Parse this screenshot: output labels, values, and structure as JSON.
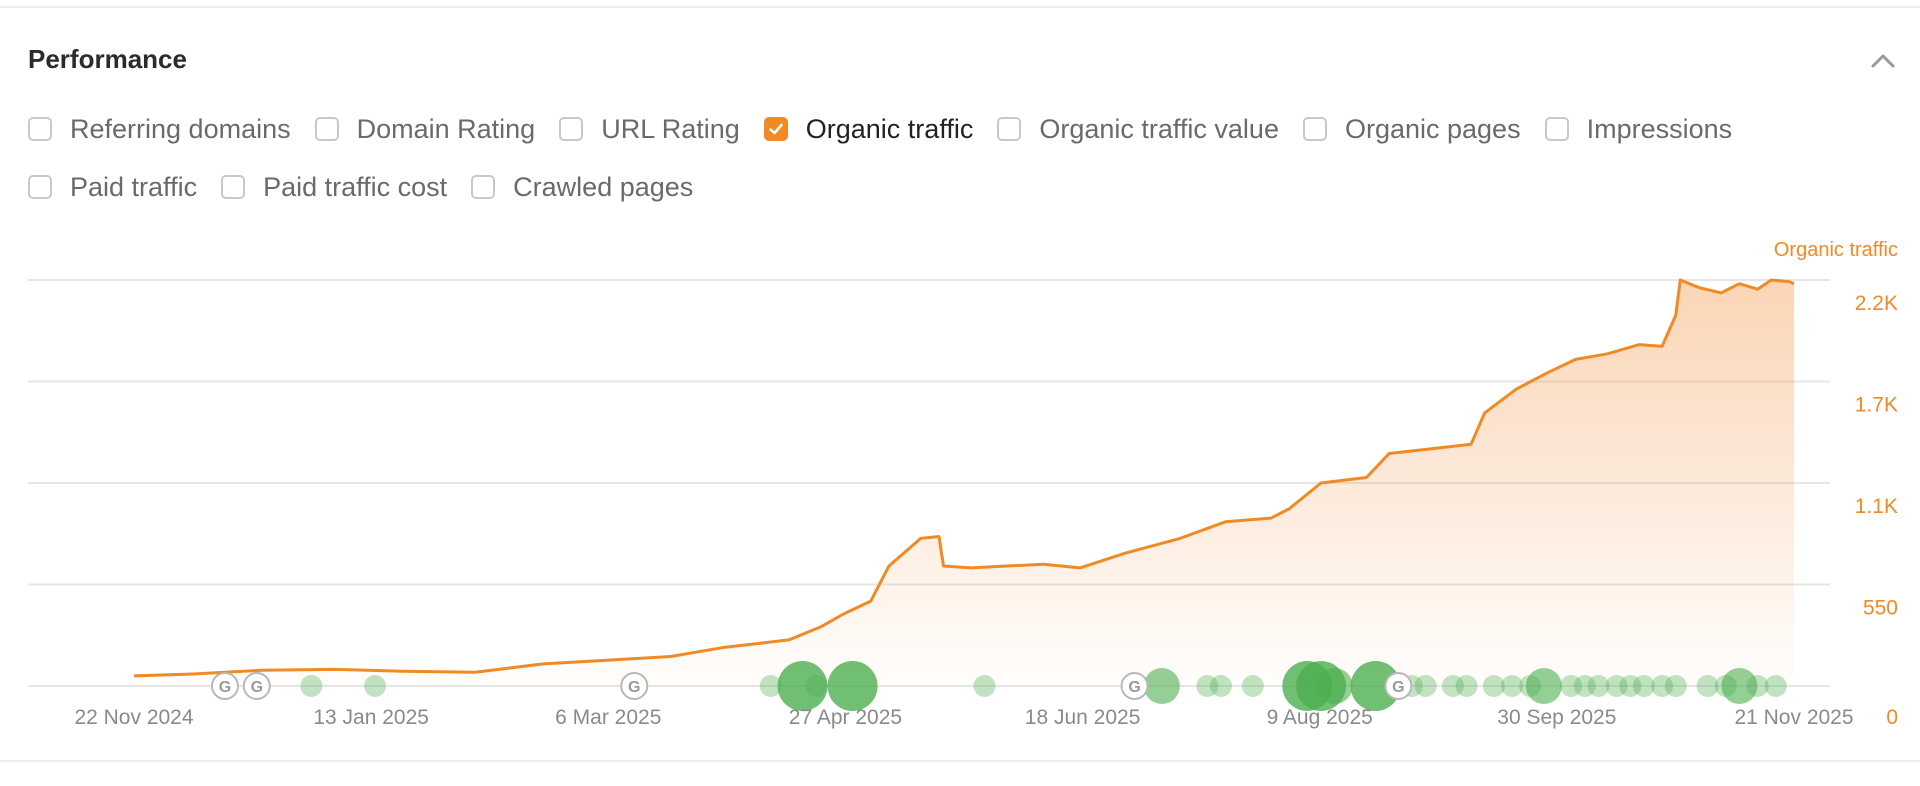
{
  "panel": {
    "title": "Performance",
    "collapse_icon": "chevron-up-icon"
  },
  "metrics": [
    [
      {
        "label": "Referring domains",
        "checked": false
      },
      {
        "label": "Domain Rating",
        "checked": false
      },
      {
        "label": "URL Rating",
        "checked": false
      },
      {
        "label": "Organic traffic",
        "checked": true
      },
      {
        "label": "Organic traffic value",
        "checked": false
      },
      {
        "label": "Organic pages",
        "checked": false
      },
      {
        "label": "Impressions",
        "checked": false
      }
    ],
    [
      {
        "label": "Paid traffic",
        "checked": false
      },
      {
        "label": "Paid traffic cost",
        "checked": false
      },
      {
        "label": "Crawled pages",
        "checked": false
      }
    ]
  ],
  "colors": {
    "accent": "#f08a24",
    "event_green": "#4caf50",
    "grid": "#e6e6e6"
  },
  "chart_data": {
    "type": "area",
    "series": [
      {
        "name": "Organic traffic",
        "points": [
          [
            "2024-11-22",
            55
          ],
          [
            "2024-12-05",
            65
          ],
          [
            "2024-12-20",
            85
          ],
          [
            "2025-01-05",
            90
          ],
          [
            "2025-01-20",
            80
          ],
          [
            "2025-02-05",
            75
          ],
          [
            "2025-02-20",
            120
          ],
          [
            "2025-03-06",
            140
          ],
          [
            "2025-03-20",
            160
          ],
          [
            "2025-04-01",
            210
          ],
          [
            "2025-04-08",
            230
          ],
          [
            "2025-04-15",
            250
          ],
          [
            "2025-04-22",
            320
          ],
          [
            "2025-04-27",
            390
          ],
          [
            "2025-05-03",
            460
          ],
          [
            "2025-05-07",
            650
          ],
          [
            "2025-05-14",
            800
          ],
          [
            "2025-05-18",
            810
          ],
          [
            "2025-05-19",
            650
          ],
          [
            "2025-05-25",
            640
          ],
          [
            "2025-06-10",
            660
          ],
          [
            "2025-06-18",
            640
          ],
          [
            "2025-06-28",
            720
          ],
          [
            "2025-07-10",
            800
          ],
          [
            "2025-07-20",
            890
          ],
          [
            "2025-07-30",
            910
          ],
          [
            "2025-08-03",
            960
          ],
          [
            "2025-08-10",
            1100
          ],
          [
            "2025-08-20",
            1130
          ],
          [
            "2025-08-25",
            1260
          ],
          [
            "2025-09-05",
            1290
          ],
          [
            "2025-09-12",
            1310
          ],
          [
            "2025-09-15",
            1480
          ],
          [
            "2025-09-22",
            1610
          ],
          [
            "2025-09-29",
            1700
          ],
          [
            "2025-10-05",
            1770
          ],
          [
            "2025-10-12",
            1800
          ],
          [
            "2025-10-19",
            1850
          ],
          [
            "2025-10-24",
            1840
          ],
          [
            "2025-10-27",
            2010
          ],
          [
            "2025-10-28",
            2200
          ],
          [
            "2025-11-01",
            2160
          ],
          [
            "2025-11-06",
            2130
          ],
          [
            "2025-11-10",
            2180
          ],
          [
            "2025-11-14",
            2150
          ],
          [
            "2025-11-17",
            2200
          ],
          [
            "2025-11-21",
            2190
          ],
          [
            "2025-11-22",
            2180
          ]
        ]
      }
    ],
    "x_ticks": [
      "22 Nov 2024",
      "13 Jan 2025",
      "6 Mar 2025",
      "27 Apr 2025",
      "18 Jun 2025",
      "9 Aug 2025",
      "30 Sep 2025",
      "21 Nov 2025"
    ],
    "y_axis": {
      "label": "Organic traffic",
      "ticks": [
        "0",
        "550",
        "1.1K",
        "1.7K",
        "2.2K"
      ],
      "values": [
        0,
        550,
        1100,
        1650,
        2200
      ]
    },
    "y_range": [
      0,
      2200
    ],
    "x_range": [
      "2024-11-22",
      "2025-11-22"
    ],
    "grid": true,
    "google_update_markers": [
      "2024-12-12",
      "2024-12-19",
      "2025-03-12",
      "2025-06-30",
      "2025-08-27"
    ],
    "events": [
      {
        "date": "2024-12-31",
        "size": 1
      },
      {
        "date": "2025-01-14",
        "size": 1
      },
      {
        "date": "2025-04-11",
        "size": 1
      },
      {
        "date": "2025-04-18",
        "size": 3
      },
      {
        "date": "2025-04-21",
        "size": 1
      },
      {
        "date": "2025-04-29",
        "size": 3
      },
      {
        "date": "2025-05-28",
        "size": 1
      },
      {
        "date": "2025-07-06",
        "size": 2
      },
      {
        "date": "2025-07-16",
        "size": 1
      },
      {
        "date": "2025-07-19",
        "size": 1
      },
      {
        "date": "2025-07-26",
        "size": 1
      },
      {
        "date": "2025-08-07",
        "size": 3
      },
      {
        "date": "2025-08-10",
        "size": 3
      },
      {
        "date": "2025-08-13",
        "size": 2
      },
      {
        "date": "2025-08-22",
        "size": 3
      },
      {
        "date": "2025-08-30",
        "size": 1
      },
      {
        "date": "2025-09-02",
        "size": 1
      },
      {
        "date": "2025-09-08",
        "size": 1
      },
      {
        "date": "2025-09-11",
        "size": 1
      },
      {
        "date": "2025-09-17",
        "size": 1
      },
      {
        "date": "2025-09-21",
        "size": 1
      },
      {
        "date": "2025-09-25",
        "size": 1
      },
      {
        "date": "2025-09-28",
        "size": 2
      },
      {
        "date": "2025-10-04",
        "size": 1
      },
      {
        "date": "2025-10-07",
        "size": 1
      },
      {
        "date": "2025-10-10",
        "size": 1
      },
      {
        "date": "2025-10-14",
        "size": 1
      },
      {
        "date": "2025-10-17",
        "size": 1
      },
      {
        "date": "2025-10-20",
        "size": 1
      },
      {
        "date": "2025-10-24",
        "size": 1
      },
      {
        "date": "2025-10-27",
        "size": 1
      },
      {
        "date": "2025-11-03",
        "size": 1
      },
      {
        "date": "2025-11-07",
        "size": 1
      },
      {
        "date": "2025-11-10",
        "size": 2
      },
      {
        "date": "2025-11-14",
        "size": 1
      },
      {
        "date": "2025-11-18",
        "size": 1
      }
    ]
  }
}
